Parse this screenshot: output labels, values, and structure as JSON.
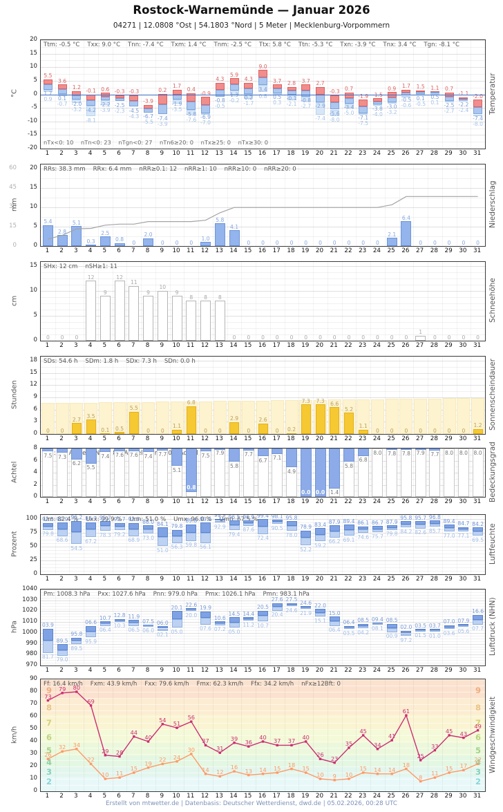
{
  "title": "Rostock-Warnemünde  —  Januar 2026",
  "subtitle": "04271  |  12.0808 °Ost  |  54.1803 °Nord  |  5 Meter  |  Mecklenburg-Vorpommern",
  "footer": "Erstellt von mtwetter.de | Datenbasis: Deutscher Wetterdienst, dwd.de | 05.02.2026, 00:28 UTC",
  "days": [
    "1",
    "2",
    "3",
    "4",
    "5",
    "6",
    "7",
    "8",
    "9",
    "10",
    "11",
    "12",
    "13",
    "14",
    "15",
    "16",
    "17",
    "18",
    "19",
    "20",
    "21",
    "22",
    "23",
    "24",
    "25",
    "26",
    "27",
    "28",
    "29",
    "30",
    "31"
  ],
  "chart_data": [
    {
      "type": "bar",
      "title": "Temperatur",
      "unit": "°C",
      "stats": "Ttm: -0.5 °C    Txx: 9.0 °C    Tnn: -7.4 °C    Txm: 1.4 °C    Tnm: -2.5 °C    Ttx: 5.8 °C    Ttn: -5.3 °C    Txn: -3.9 °C    Tnx: 3.4 °C    Tgn: -8.1 °C",
      "stats2": "nTx<0: 10    nTn<0: 23    nTgn<0: 27    nTn6≥20: 0    nTx≥25: 0    nTx≥30: 0",
      "ylim": [
        -20,
        20
      ],
      "yticks": [
        "20",
        "15",
        "10",
        "5",
        "0",
        "-5",
        "-10",
        "-15",
        "-20"
      ],
      "series": [
        {
          "name": "Tmax",
          "values": [
            5.5,
            3.6,
            1.2,
            -0.1,
            0.6,
            -0.3,
            -0.3,
            -3.9,
            0.2,
            1.7,
            0.4,
            -0.9,
            4.3,
            5.9,
            4.3,
            9.0,
            3.7,
            2.8,
            3.7,
            2.7,
            -0.3,
            0.7,
            -1.9,
            -1.5,
            0.9,
            1.7,
            1.5,
            1.1,
            0.7,
            -1.1,
            -2.0
          ]
        },
        {
          "name": "Tmin",
          "values": [
            1.7,
            0.1,
            -2.0,
            -4.2,
            -2.2,
            -2.5,
            -4.5,
            -6.7,
            -7.4,
            -1.9,
            -5.8,
            -6.9,
            -0.8,
            1.3,
            0.2,
            3.4,
            0.5,
            -0.1,
            -0.8,
            -2.9,
            -5.6,
            -3.4,
            -7.1,
            -3.8,
            -3.0,
            -0.5,
            0.1,
            0.5,
            -2.5,
            -2.2,
            -7.4
          ]
        },
        {
          "name": "Tgrund",
          "values": [
            0.9,
            -0.7,
            -3.2,
            -8.1,
            -3.9,
            -2.3,
            -4.3,
            -5.5,
            -3.9,
            -3.5,
            -7.6,
            -7.0,
            -0.5,
            -0.2,
            -1.7,
            0.8,
            0.3,
            -2.1,
            -2.7,
            -7.4,
            -8.0,
            -5.0,
            -7.5,
            -4.0,
            -3.2,
            -0.6,
            -0.5,
            0.1,
            -2.7,
            -2.4,
            -8.0
          ]
        }
      ]
    },
    {
      "type": "bar",
      "title": "Niederschlag",
      "unit": "mm",
      "stats": "RRs: 38.3 mm    RRx: 6.4 mm    nRR≥0.1: 12    nRR≥1: 10    nRR≥10: 0    nRR≥20: 0",
      "ylim": [
        0,
        21
      ],
      "yticks": [
        "20",
        "15",
        "10",
        "5",
        "0"
      ],
      "yticks_cum": [
        "60",
        "45",
        "30",
        "15",
        "0"
      ],
      "values": [
        5.4,
        2.8,
        5.1,
        0.3,
        2.5,
        0.8,
        0,
        2.0,
        0,
        0,
        0,
        1.0,
        5.8,
        4.1,
        0,
        0,
        0,
        0,
        0,
        0,
        0,
        0,
        0,
        0,
        2.1,
        6.4,
        0,
        0,
        0,
        0,
        0
      ]
    },
    {
      "type": "bar",
      "title": "Schneehöhe",
      "unit": "cm",
      "stats": "SHx: 12 cm    nSH≥1: 11",
      "ylim": [
        0,
        15.8
      ],
      "yticks": [
        "15",
        "10",
        "5",
        "0"
      ],
      "values": [
        0,
        0,
        0,
        12,
        9,
        12,
        11,
        9,
        10,
        9,
        8,
        8,
        8,
        0,
        0,
        0,
        0,
        0,
        0,
        0,
        0,
        0,
        0,
        0,
        0,
        0,
        1,
        0,
        0,
        0,
        0
      ]
    },
    {
      "type": "bar",
      "title": "Sonnenscheindauer",
      "unit": "Stunden",
      "stats": "SDs: 54.6 h    SDm: 1.8 h    SDx: 7.3 h    SDn: 0.0 h",
      "ylim": [
        0,
        19
      ],
      "yticks": [
        "18",
        "15",
        "12",
        "9",
        "6",
        "3",
        "0"
      ],
      "values": [
        0,
        0,
        2.7,
        3.5,
        0.1,
        0.5,
        5.5,
        0,
        0,
        1.1,
        6.8,
        0,
        0,
        2.9,
        0,
        2.6,
        0,
        0.2,
        7.3,
        7.3,
        6.6,
        5.2,
        1.1,
        0,
        0,
        0,
        0,
        0,
        0,
        0,
        1.2
      ]
    },
    {
      "type": "bar",
      "title": "Bedeckungsgrad",
      "unit": "Achtel",
      "stats": "Nm: 6.3 Achtel    Nmx: 8.0 Achtel    Nmn: 0.0 Achtel",
      "ylim": [
        0,
        8
      ],
      "yticks": [
        "8",
        "6",
        "4",
        "2",
        "0"
      ],
      "values": [
        7.5,
        7.3,
        6.2,
        5.5,
        7.4,
        7.6,
        7.6,
        7.4,
        7.7,
        5.1,
        0.8,
        7.5,
        7.9,
        5.8,
        7.7,
        6.7,
        7.1,
        4.9,
        0.0,
        0.0,
        1.4,
        5.8,
        6.8,
        8.0,
        7.8,
        7.8,
        7.9,
        7.7,
        8.0,
        8.0,
        8.0
      ]
    },
    {
      "type": "bar",
      "title": "Luftfeuchte",
      "unit": "Prozent",
      "stats": "Um: 82.4 %    Uxx: 99.9 %    Unn: 51.0 %    Umx: 96.0 %    Umn: 67.5 %",
      "ylim": [
        0,
        107
      ],
      "yticks": [
        "100",
        "75",
        "50",
        "25",
        "0"
      ],
      "series": [
        {
          "name": "Umax",
          "values": [
            92.5,
            92.9,
            96.2,
            93.7,
            95.7,
            92.7,
            92.5,
            88.0,
            84.1,
            79.8,
            89.8,
            93.0,
            99.9,
            96.5,
            96.9,
            99.4,
            98.1,
            95.8,
            78.9,
            83.4,
            87.9,
            89.4,
            86.1,
            86.7,
            87.9,
            95.8,
            95.7,
            96.8,
            89.4,
            84.7,
            84.2
          ]
        },
        {
          "name": "Umin",
          "values": [
            79.8,
            68.6,
            54.5,
            67.2,
            78.3,
            79.2,
            68.9,
            73.0,
            51.0,
            56.3,
            59.8,
            56.1,
            92.9,
            79.4,
            87.6,
            72.4,
            90.5,
            78.0,
            52.2,
            59.2,
            66.2,
            69.1,
            74.6,
            75.7,
            79.8,
            84.2,
            82.6,
            85.7,
            77.0,
            77.1,
            69.5
          ]
        }
      ]
    },
    {
      "type": "bar",
      "title": "Luftdruck (NHN)",
      "unit": "hPa",
      "stats": "Pm: 1008.3 hPa    Pxx: 1027.6 hPa    Pnn: 979.0 hPa    Pmx: 1026.1 hPa    Pmn: 983.1 hPa",
      "ylim": [
        970,
        1040
      ],
      "yticks": [
        "1040",
        "1030",
        "1020",
        "1010",
        "1000",
        "990",
        "980",
        "970"
      ],
      "series": [
        {
          "name": "Pmax",
          "values": [
            1003.9,
            989.5,
            995.8,
            1006.6,
            1010.7,
            1012.8,
            1011.9,
            1007.5,
            1006.0,
            1020.1,
            1022.6,
            1019.9,
            1010.6,
            1014.5,
            1014.4,
            1020.5,
            1027.6,
            1027.5,
            1024.6,
            1022.0,
            1015.0,
            1006.4,
            1008.5,
            1009.4,
            1008.5,
            1002.0,
            1003.5,
            1003.7,
            1007.0,
            1007.9,
            1016.6
          ]
        },
        {
          "name": "Pmin",
          "values": [
            981.7,
            979.0,
            989.5,
            995.9,
            1006.4,
            1010.3,
            1006.5,
            1006.0,
            1002.1,
            1005.0,
            1020.0,
            1007.6,
            1007.2,
            1005.0,
            1011.2,
            1010.7,
            1020.4,
            1024.6,
            1021.9,
            1015.1,
            1006.4,
            1003.5,
            1004.2,
            1008.1,
            1000.9,
            997.2,
            1001.5,
            1001.0,
            1003.6,
            1005.6,
            1007.7
          ]
        }
      ]
    },
    {
      "type": "line",
      "title": "Windgeschwindigkeit",
      "unit": "km/h",
      "stats": "Ff: 16.4 km/h    Fxm: 43.9 km/h    Fxx: 79.6 km/h    Fmx: 62.3 km/h    Ffx: 34.2 km/h    nFx≥12Bft: 0",
      "ylim": [
        0,
        90
      ],
      "yticks": [
        "90",
        "80",
        "70",
        "60",
        "50",
        "40",
        "30",
        "20",
        "10",
        "0"
      ],
      "bft_labels": [
        "9",
        "8",
        "7",
        "6",
        "5",
        "4",
        "3",
        "2"
      ],
      "series": [
        {
          "name": "Windspitze",
          "color": "#cc2d72",
          "values": [
            73,
            79,
            80,
            69,
            29,
            28,
            44,
            40,
            54,
            51,
            56,
            37,
            31,
            39,
            36,
            40,
            37,
            37,
            40,
            26,
            23,
            35,
            45,
            34,
            41,
            61,
            25,
            33,
            45,
            43,
            49
          ]
        },
        {
          "name": "Windmittel",
          "color": "#ff9966",
          "values": [
            26,
            32,
            34,
            22,
            10,
            11,
            15,
            19,
            22,
            24,
            30,
            14,
            12,
            16,
            13,
            14,
            15,
            18,
            15,
            10,
            9,
            10,
            15,
            14,
            14,
            18,
            8,
            11,
            15,
            17,
            22
          ]
        }
      ]
    }
  ]
}
